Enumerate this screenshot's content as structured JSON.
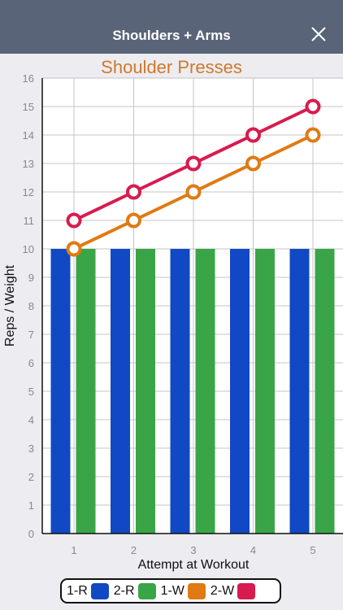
{
  "header": {
    "title": "Shoulders + Arms",
    "close_icon": "close-icon"
  },
  "colors": {
    "header_bg": "#5a6478",
    "title_orange": "#d0782a",
    "bar_blue": "#1149c4",
    "bar_green": "#3aa547",
    "line_orange": "#e07a12",
    "line_red": "#d81b4e"
  },
  "chart_data": {
    "type": "bar",
    "title": "Shoulder Presses",
    "xlabel": "Attempt at Workout",
    "ylabel": "Reps / Weight",
    "categories": [
      "1",
      "2",
      "3",
      "4",
      "5"
    ],
    "ylim": [
      0,
      16
    ],
    "yticks": [
      "0",
      "1",
      "2",
      "3",
      "4",
      "5",
      "6",
      "7",
      "8",
      "9",
      "10",
      "11",
      "12",
      "13",
      "14",
      "15",
      "16"
    ],
    "grid": true,
    "legend_position": "bottom",
    "series": [
      {
        "name": "1-R",
        "kind": "bar",
        "color": "#1149c4",
        "values": [
          10,
          10,
          10,
          10,
          10
        ]
      },
      {
        "name": "2-R",
        "kind": "bar",
        "color": "#3aa547",
        "values": [
          10,
          10,
          10,
          10,
          10
        ]
      },
      {
        "name": "1-W",
        "kind": "line",
        "color": "#e07a12",
        "values": [
          10,
          11,
          12,
          13,
          14
        ]
      },
      {
        "name": "2-W",
        "kind": "line",
        "color": "#d81b4e",
        "values": [
          11,
          12,
          13,
          14,
          15
        ]
      }
    ]
  }
}
